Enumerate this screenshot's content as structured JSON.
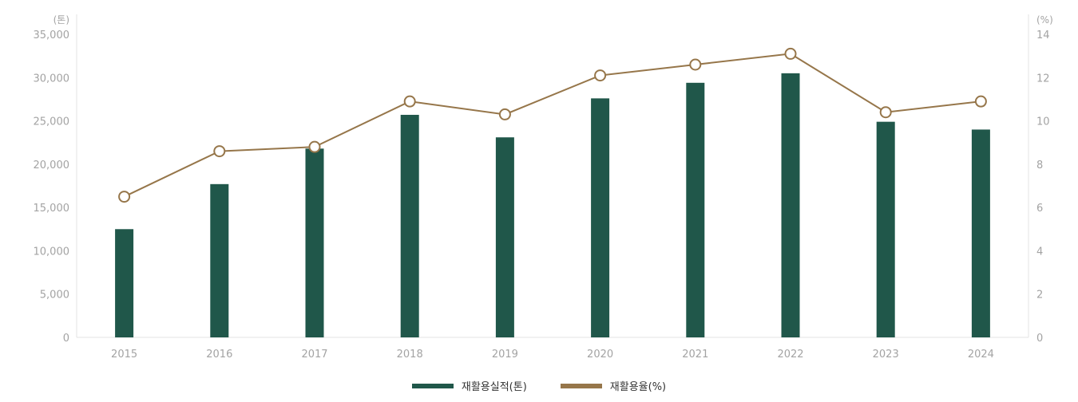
{
  "chart_data": {
    "type": "bar",
    "categories": [
      "2015",
      "2016",
      "2017",
      "2018",
      "2019",
      "2020",
      "2021",
      "2022",
      "2023",
      "2024"
    ],
    "series": [
      {
        "name": "재활용실적(톤)",
        "kind": "bar",
        "axis": "left",
        "color": "#20574a",
        "values": [
          12500,
          17700,
          21800,
          25700,
          23100,
          27600,
          29400,
          30500,
          24900,
          24000
        ]
      },
      {
        "name": "재활용율(%)",
        "kind": "line",
        "axis": "right",
        "color": "#96764a",
        "values": [
          6.5,
          8.6,
          8.8,
          10.9,
          10.3,
          12.1,
          12.6,
          13.1,
          10.4,
          10.9
        ]
      }
    ],
    "left_axis": {
      "unit": "(톤)",
      "ylim": [
        0,
        35000
      ],
      "ticks": [
        "0",
        "5,000",
        "10,000",
        "15,000",
        "20,000",
        "25,000",
        "30,000",
        "35,000"
      ]
    },
    "right_axis": {
      "unit": "(%)",
      "ylim": [
        0,
        14
      ],
      "ticks": [
        "0",
        "2",
        "4",
        "6",
        "8",
        "10",
        "12",
        "14"
      ]
    },
    "grid": false,
    "legend_position": "bottom-center"
  }
}
